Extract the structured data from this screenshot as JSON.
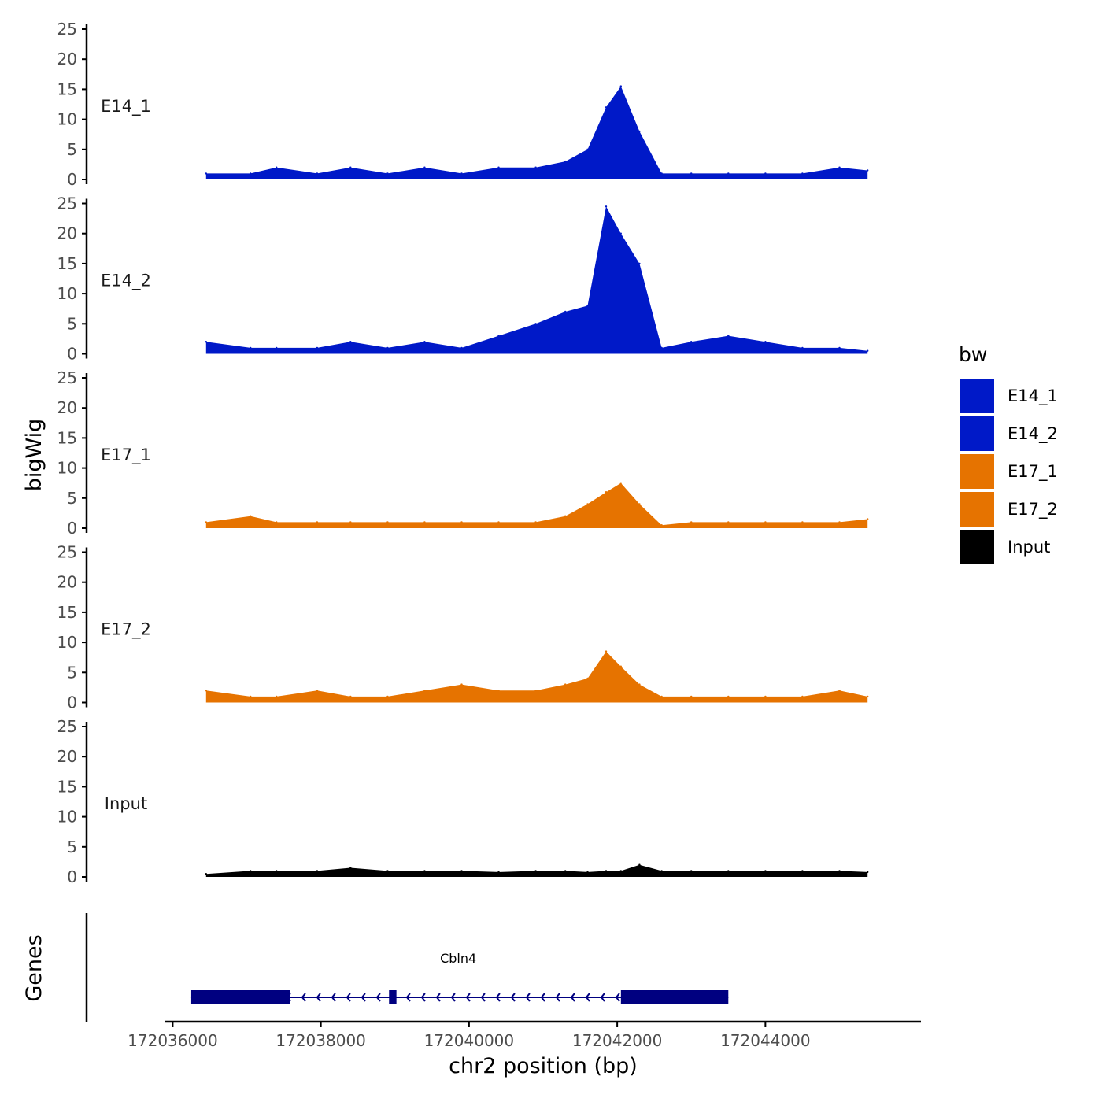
{
  "chart_data": {
    "type": "area",
    "xlabel": "chr2 position (bp)",
    "ylabel_tracks": "bigWig",
    "ylabel_genes": "Genes",
    "xlim": [
      172035900,
      172046100
    ],
    "x_ticks": [
      172036000,
      172038000,
      172040000,
      172042000,
      172044000
    ],
    "x_tick_labels": [
      "172036000",
      "172038000",
      "172040000",
      "172042000",
      "172044000"
    ],
    "ylim": [
      0,
      25
    ],
    "y_ticks": [
      0,
      5,
      10,
      15,
      20,
      25
    ],
    "y_tick_labels": [
      "0",
      "5",
      "10",
      "15",
      "20",
      "25"
    ],
    "legend": {
      "title": "bw",
      "position": "right",
      "entries": [
        {
          "label": "E14_1",
          "color": "#0019c8"
        },
        {
          "label": "E14_2",
          "color": "#0019c8"
        },
        {
          "label": "E17_1",
          "color": "#e67300"
        },
        {
          "label": "E17_2",
          "color": "#e67300"
        },
        {
          "label": "Input",
          "color": "#000000"
        }
      ]
    },
    "x": [
      172036450,
      172037050,
      172037400,
      172037950,
      172038400,
      172038900,
      172039400,
      172039900,
      172040400,
      172040900,
      172041300,
      172041600,
      172041850,
      172042050,
      172042300,
      172042600,
      172043000,
      172043500,
      172044000,
      172044500,
      172045000,
      172045380
    ],
    "series": [
      {
        "name": "E14_1",
        "color": "#0019c8",
        "values": [
          1,
          1,
          2,
          1,
          2,
          1,
          2,
          1,
          2,
          2,
          3,
          5,
          12,
          15.5,
          8,
          1,
          1,
          1,
          1,
          1,
          2,
          1.5
        ]
      },
      {
        "name": "E14_2",
        "color": "#0019c8",
        "values": [
          2,
          1,
          1,
          1,
          2,
          1,
          2,
          1,
          3,
          5,
          7,
          8,
          24.5,
          20,
          15,
          1,
          2,
          3,
          2,
          1,
          1,
          0.5
        ]
      },
      {
        "name": "E17_1",
        "color": "#e67300",
        "values": [
          1,
          2,
          1,
          1,
          1,
          1,
          1,
          1,
          1,
          1,
          2,
          4,
          6,
          7.5,
          4,
          0.5,
          1,
          1,
          1,
          1,
          1,
          1.5
        ]
      },
      {
        "name": "E17_2",
        "color": "#e67300",
        "values": [
          2,
          1,
          1,
          2,
          1,
          1,
          2,
          3,
          2,
          2,
          3,
          4,
          8.5,
          6,
          3,
          1,
          1,
          1,
          1,
          1,
          2,
          1
        ]
      },
      {
        "name": "Input",
        "color": "#000000",
        "values": [
          0.5,
          1,
          1,
          1,
          1.5,
          1,
          1,
          1,
          0.8,
          1,
          1,
          0.8,
          1,
          1,
          2,
          1,
          1,
          1,
          1,
          1,
          1,
          0.8
        ]
      }
    ],
    "genes": [
      {
        "name": "Cbln4",
        "strand": "-",
        "start": 172036250,
        "end": 172043500,
        "color": "#000080",
        "exons": [
          {
            "start": 172036250,
            "end": 172037580
          },
          {
            "start": 172038920,
            "end": 172039020
          },
          {
            "start": 172042050,
            "end": 172043500
          }
        ]
      }
    ]
  }
}
